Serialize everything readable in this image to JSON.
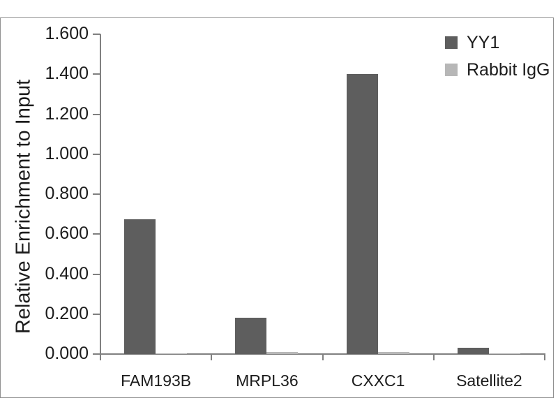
{
  "chart_data": {
    "type": "bar",
    "title": "",
    "xlabel": "",
    "ylabel": "Relative Enrichment to Input",
    "categories": [
      "FAM193B",
      "MRPL36",
      "CXXC1",
      "Satellite2"
    ],
    "series": [
      {
        "name": "YY1",
        "color": "#5e5e5e",
        "values": [
          0.675,
          0.18,
          1.4,
          0.03
        ]
      },
      {
        "name": "Rabbit IgG",
        "color": "#b7b7b7",
        "values": [
          0.004,
          0.01,
          0.01,
          0.004
        ]
      }
    ],
    "ylim": [
      0,
      1.6
    ],
    "ytick_step": 0.2,
    "ytick_labels": [
      "0.000",
      "0.200",
      "0.400",
      "0.600",
      "0.800",
      "1.000",
      "1.200",
      "1.400",
      "1.600"
    ],
    "grid": false,
    "legend_position": "top-right"
  },
  "colors": {
    "frame_border": "#909090",
    "axis": "#808080",
    "text": "#1c1c1c",
    "background": "#ffffff"
  }
}
